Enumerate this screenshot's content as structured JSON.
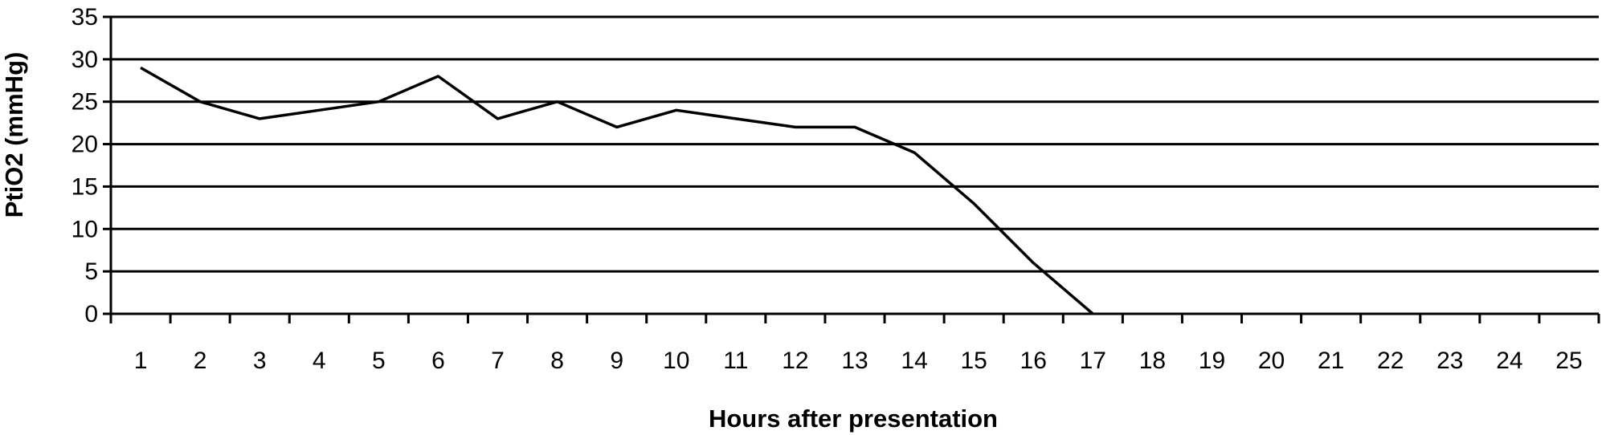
{
  "chart_data": {
    "type": "line",
    "title": "",
    "xlabel": "Hours after presentation",
    "ylabel": "PtiO2 (mmHg)",
    "ylim": [
      0,
      35
    ],
    "yticks": [
      0,
      5,
      10,
      15,
      20,
      25,
      30,
      35
    ],
    "categories": [
      "1",
      "2",
      "3",
      "4",
      "5",
      "6",
      "7",
      "8",
      "9",
      "10",
      "11",
      "12",
      "13",
      "14",
      "15",
      "16",
      "17",
      "18",
      "19",
      "20",
      "21",
      "22",
      "23",
      "24",
      "25"
    ],
    "grid": "horizontal",
    "legend": "none",
    "line_color": "#000000",
    "series": [
      {
        "values": [
          29,
          25,
          23,
          24,
          25,
          28,
          23,
          25,
          22,
          24,
          23,
          22,
          22,
          19,
          13,
          6,
          0,
          null,
          null,
          null,
          null,
          null,
          null,
          null,
          null
        ]
      }
    ]
  }
}
